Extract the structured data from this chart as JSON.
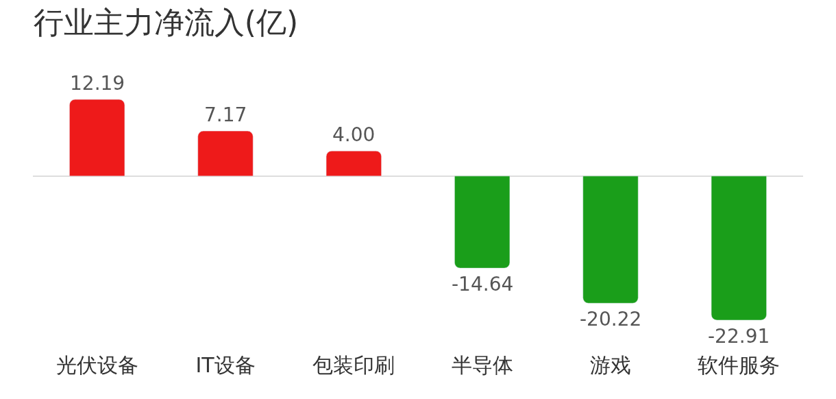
{
  "chart_data": {
    "type": "bar",
    "title": "行业主力净流入(亿)",
    "categories": [
      "光伏设备",
      "IT设备",
      "包装印刷",
      "半导体",
      "游戏",
      "软件服务"
    ],
    "values": [
      12.19,
      7.17,
      4.0,
      -14.64,
      -20.22,
      -22.91
    ],
    "colors": [
      "#ee1a1a",
      "#ee1a1a",
      "#ee1a1a",
      "#1a9e1a",
      "#1a9e1a",
      "#1a9e1a"
    ],
    "value_labels": [
      "12.19",
      "7.17",
      "4.00",
      "-14.64",
      "-20.22",
      "-22.91"
    ]
  }
}
